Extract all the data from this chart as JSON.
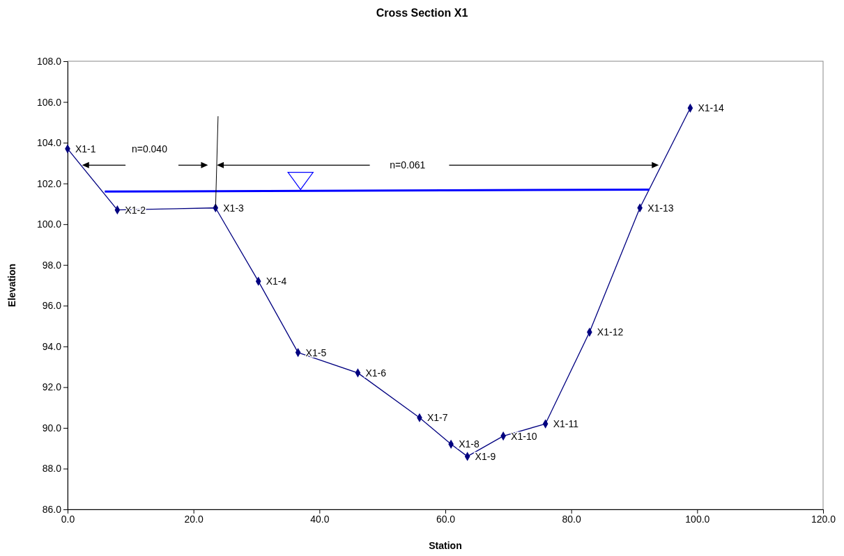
{
  "chart_data": {
    "type": "line",
    "title": "Cross Section X1",
    "xlabel": "Station",
    "ylabel": "Elevation",
    "xlim": [
      0,
      120
    ],
    "ylim": [
      86,
      108
    ],
    "xticks": [
      {
        "value": 0,
        "label": "0.0"
      },
      {
        "value": 20,
        "label": "20.0"
      },
      {
        "value": 40,
        "label": "40.0"
      },
      {
        "value": 60,
        "label": "60.0"
      },
      {
        "value": 80,
        "label": "80.0"
      },
      {
        "value": 100,
        "label": "100.0"
      },
      {
        "value": 120,
        "label": "120.0"
      }
    ],
    "yticks": [
      {
        "value": 86,
        "label": "86.0"
      },
      {
        "value": 88,
        "label": "88.0"
      },
      {
        "value": 90,
        "label": "90.0"
      },
      {
        "value": 92,
        "label": "92.0"
      },
      {
        "value": 94,
        "label": "94.0"
      },
      {
        "value": 96,
        "label": "96.0"
      },
      {
        "value": 98,
        "label": "98.0"
      },
      {
        "value": 100,
        "label": "100.0"
      },
      {
        "value": 102,
        "label": "102.0"
      },
      {
        "value": 104,
        "label": "104.0"
      },
      {
        "value": 106,
        "label": "106.0"
      },
      {
        "value": 108,
        "label": "108.0"
      }
    ],
    "grid": false,
    "series": [
      {
        "color": "#000080",
        "marker": "diamond",
        "x": [
          0,
          7.9,
          23.5,
          30.3,
          36.6,
          46.1,
          55.9,
          60.9,
          63.5,
          69.2,
          75.9,
          82.9,
          90.9,
          98.9
        ],
        "values": [
          103.7,
          100.7,
          100.8,
          97.2,
          93.7,
          92.7,
          90.5,
          89.2,
          88.6,
          89.6,
          90.2,
          94.7,
          100.8,
          105.7
        ],
        "value_labels": [
          "X1-1",
          "X1-2",
          "X1-3",
          "X1-4",
          "X1-5",
          "X1-6",
          "X1-7",
          "X1-8",
          "X1-9",
          "X1-10",
          "X1-11",
          "X1-12",
          "X1-13",
          "X1-14"
        ]
      },
      {
        "color": "#0000ff",
        "marker": "none",
        "x": [
          5.9,
          92.4
        ],
        "values": [
          101.6,
          101.7
        ]
      },
      {
        "color": "#000000",
        "marker": "none",
        "x": [
          23.5,
          23.9
        ],
        "values": [
          100.8,
          105.3
        ]
      }
    ],
    "annotations": [
      "n=0.040",
      "n=0.061"
    ]
  }
}
